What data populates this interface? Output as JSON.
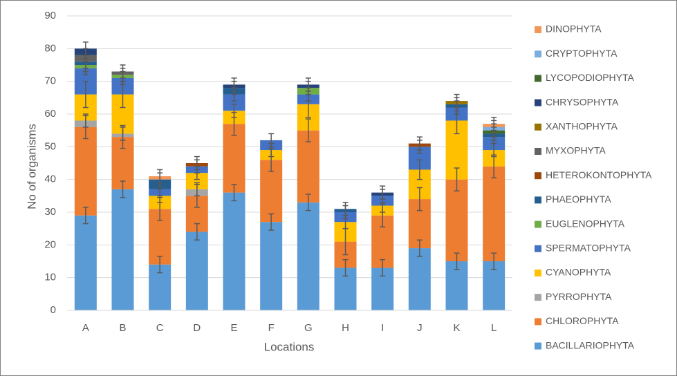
{
  "chart_data": {
    "type": "stacked-bar",
    "x_label": "Locations",
    "y_label": "No of organisms",
    "categories": [
      "A",
      "B",
      "C",
      "D",
      "E",
      "F",
      "G",
      "H",
      "I",
      "J",
      "K",
      "L"
    ],
    "ylim": [
      0,
      90
    ],
    "yticks": [
      0,
      10,
      20,
      30,
      40,
      50,
      60,
      70,
      80,
      90
    ],
    "grid": true,
    "series": [
      {
        "name": "BACILLARIOPHYTA",
        "color": "#5b9bd5",
        "values": [
          29,
          37,
          14,
          24,
          36,
          27,
          33,
          13,
          13,
          19,
          15,
          15
        ],
        "errors": [
          2.5,
          2.5,
          2.5,
          2.5,
          2.5,
          2.5,
          2.5,
          2.5,
          2.5,
          2.5,
          2.5,
          2.5
        ]
      },
      {
        "name": "CHLOROPHYTA",
        "color": "#ed7d31",
        "values": [
          27,
          16,
          17,
          11,
          21,
          19,
          22,
          8,
          16,
          15,
          25,
          29
        ],
        "errors": [
          3.5,
          3.5,
          3.5,
          3.5,
          3.5,
          3.5,
          3.5,
          4,
          3.5,
          3.5,
          3.5,
          3.5
        ]
      },
      {
        "name": "PYRROPHYTA",
        "color": "#a5a5a5",
        "values": [
          2,
          1,
          0,
          2,
          0,
          0,
          0,
          0,
          0,
          0,
          0,
          0
        ],
        "errors": [
          2,
          2,
          null,
          2,
          null,
          null,
          null,
          null,
          null,
          null,
          null,
          null
        ]
      },
      {
        "name": "CYANOPHYTA",
        "color": "#ffc000",
        "values": [
          8,
          12,
          4,
          5,
          4,
          3,
          8,
          6,
          3,
          9,
          18,
          5
        ],
        "errors": [
          4,
          4,
          2,
          2,
          2,
          2,
          4,
          2,
          2,
          3,
          4,
          2
        ]
      },
      {
        "name": "SPERMATOPHYTA",
        "color": "#4472c4",
        "values": [
          8,
          5,
          2,
          2,
          5,
          3,
          3,
          3,
          3,
          7,
          4,
          4
        ],
        "errors": [
          2,
          2,
          2,
          2,
          2,
          2,
          2,
          2,
          2,
          2,
          2,
          2
        ]
      },
      {
        "name": "EUGLENOPHYTA",
        "color": "#70ad47",
        "values": [
          1,
          1,
          0,
          0,
          0,
          0,
          2,
          0,
          0,
          0,
          0,
          0
        ],
        "errors": [
          2,
          2,
          null,
          null,
          null,
          null,
          2,
          null,
          null,
          null,
          null,
          null
        ]
      },
      {
        "name": "PHAEOPHYTA",
        "color": "#255e91",
        "values": [
          1,
          0,
          3,
          0,
          2,
          0,
          0,
          1,
          0,
          0,
          1,
          1
        ],
        "errors": [
          2,
          null,
          2,
          null,
          2,
          null,
          null,
          2,
          null,
          null,
          2,
          2
        ]
      },
      {
        "name": "HETEROKONTOPHYTA",
        "color": "#9e480e",
        "values": [
          0,
          0,
          0,
          1,
          0,
          0,
          0,
          0,
          0,
          1,
          0,
          0
        ],
        "errors": [
          null,
          null,
          null,
          2,
          null,
          null,
          null,
          null,
          null,
          2,
          null,
          null
        ]
      },
      {
        "name": "MYXOPHYTA",
        "color": "#636363",
        "values": [
          2,
          1,
          0,
          0,
          0,
          0,
          0,
          0,
          0,
          0,
          0,
          0
        ],
        "errors": [
          2,
          2,
          null,
          null,
          null,
          null,
          null,
          null,
          null,
          null,
          null,
          null
        ]
      },
      {
        "name": "XANTHOPHYTA",
        "color": "#997300",
        "values": [
          0,
          0,
          0,
          0,
          0,
          0,
          0,
          0,
          0,
          0,
          1,
          0
        ],
        "errors": [
          null,
          null,
          null,
          null,
          null,
          null,
          null,
          null,
          null,
          null,
          2,
          null
        ]
      },
      {
        "name": "CHRYSOPHYTA",
        "color": "#264478",
        "values": [
          2,
          0,
          0,
          0,
          1,
          0,
          1,
          0,
          1,
          0,
          0,
          0
        ],
        "errors": [
          2,
          null,
          null,
          null,
          2,
          null,
          2,
          null,
          2,
          null,
          null,
          null
        ]
      },
      {
        "name": "LYCOPODIOPHYTA",
        "color": "#43682b",
        "values": [
          0,
          0,
          0,
          0,
          0,
          0,
          0,
          0,
          0,
          0,
          0,
          1
        ],
        "errors": [
          null,
          null,
          null,
          null,
          null,
          null,
          null,
          null,
          null,
          null,
          null,
          2
        ]
      },
      {
        "name": "CRYPTOPHYTA",
        "color": "#7cafdd",
        "values": [
          0,
          0,
          0,
          0,
          0,
          0,
          0,
          0,
          0,
          0,
          0,
          1
        ],
        "errors": [
          null,
          null,
          null,
          null,
          null,
          null,
          null,
          null,
          null,
          null,
          null,
          2
        ]
      },
      {
        "name": "DINOPHYTA",
        "color": "#f1975a",
        "values": [
          0,
          0,
          1,
          0,
          0,
          0,
          0,
          0,
          0,
          0,
          0,
          1
        ],
        "errors": [
          null,
          null,
          2,
          null,
          null,
          null,
          null,
          null,
          null,
          null,
          null,
          2
        ]
      }
    ]
  }
}
